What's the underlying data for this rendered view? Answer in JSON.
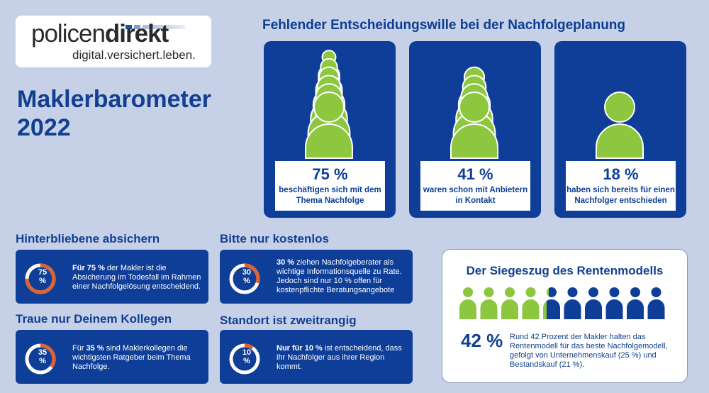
{
  "logo": {
    "brand_light": "policen",
    "brand_bold": "direkt",
    "tagline": "digital.versichert.leben."
  },
  "title": {
    "line1": "Maklerbarometer",
    "line2": "2022"
  },
  "section": {
    "title": "Fehlender Entscheidungswille bei der Nachfolgeplanung"
  },
  "stats": [
    {
      "value": "75 %",
      "label": "beschäftigen sich mit dem Thema Nachfolge"
    },
    {
      "value": "41 %",
      "label": "waren schon mit Anbietern in Kontakt"
    },
    {
      "value": "18 %",
      "label": "haben sich bereits für einen Nachfolger entschieden"
    }
  ],
  "panels": [
    {
      "heading": "Hinterbliebene absichern",
      "pct": 75,
      "pct_value": "75",
      "pct_unit": "%",
      "bold": "Für 75 %",
      "text": " der Makler ist die Absicherung im Todesfall im Rahmen einer Nachfolgelösung entscheidend."
    },
    {
      "heading": "Bitte nur kostenlos",
      "pct": 30,
      "pct_value": "30",
      "pct_unit": "%",
      "bold": "30 %",
      "text": " ziehen Nachfolgeberater als wichtige Informationsquelle zu Rate. Jedoch sind nur 10 % offen für kostenpflichte Beratungsangebote"
    },
    {
      "heading": "Traue nur Deinem Kollegen",
      "pct": 35,
      "pct_value": "35",
      "pct_unit": "%",
      "pre": "Für ",
      "bold": "35 %",
      "text": " sind Maklerkollegen die wichtigsten Ratgeber beim Thema Nachfolge."
    },
    {
      "heading": "Standort ist zweitrangig",
      "pct": 10,
      "pct_value": "10",
      "pct_unit": "%",
      "bold": "Nur für 10 %",
      "text": " ist entscheidend, dass ihr Nachfolger aus ihrer Region kommt."
    }
  ],
  "rentenmodell": {
    "title": "Der Siegeszug des Rentenmodells",
    "value": "42 %",
    "share": 0.42,
    "description": "Rund 42 Prozent der Makler halten das Rentenmodell für das beste Nachfolgemodell, gefolgt von Unternehmenskauf (25 %) und Bestandskauf (21 %)."
  },
  "colors": {
    "background": "#c6d1e8",
    "primary": "#0e3e98",
    "green": "#8dc63f",
    "orange": "#e0622e"
  }
}
